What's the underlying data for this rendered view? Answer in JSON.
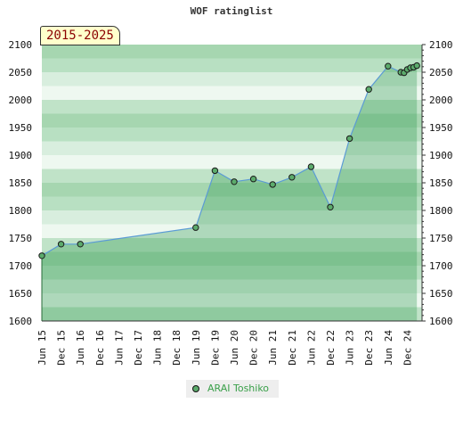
{
  "chart_data": {
    "type": "area",
    "title": "WOF ratinglist",
    "period_label": "2015-2025",
    "ylim": [
      1600,
      2100
    ],
    "yticks": [
      1600,
      1650,
      1700,
      1750,
      1800,
      1850,
      1900,
      1950,
      2000,
      2050,
      2100
    ],
    "x_ticks": [
      {
        "date": "2015-06",
        "label": "Jun 15"
      },
      {
        "date": "2015-12",
        "label": "Dec 15"
      },
      {
        "date": "2016-06",
        "label": "Jun 16"
      },
      {
        "date": "2016-12",
        "label": "Dec 16"
      },
      {
        "date": "2017-06",
        "label": "Jun 17"
      },
      {
        "date": "2017-12",
        "label": "Dec 17"
      },
      {
        "date": "2018-06",
        "label": "Jun 18"
      },
      {
        "date": "2018-12",
        "label": "Dec 18"
      },
      {
        "date": "2019-06",
        "label": "Jun 19"
      },
      {
        "date": "2019-12",
        "label": "Dec 19"
      },
      {
        "date": "2020-06",
        "label": "Jun 20"
      },
      {
        "date": "2020-12",
        "label": "Dec 20"
      },
      {
        "date": "2021-06",
        "label": "Jun 21"
      },
      {
        "date": "2021-12",
        "label": "Dec 21"
      },
      {
        "date": "2022-06",
        "label": "Jun 22"
      },
      {
        "date": "2022-12",
        "label": "Dec 22"
      },
      {
        "date": "2023-06",
        "label": "Jun 23"
      },
      {
        "date": "2023-12",
        "label": "Dec 23"
      },
      {
        "date": "2024-06",
        "label": "Jun 24"
      },
      {
        "date": "2024-12",
        "label": "Dec 24"
      }
    ],
    "series": [
      {
        "name": "ARAI Toshiko",
        "color": "#5cab6c",
        "points": [
          {
            "date": "2015-06",
            "value": 1718
          },
          {
            "date": "2015-12",
            "value": 1739
          },
          {
            "date": "2016-06",
            "value": 1739
          },
          {
            "date": "2019-06",
            "value": 1769
          },
          {
            "date": "2019-12",
            "value": 1872
          },
          {
            "date": "2020-06",
            "value": 1852
          },
          {
            "date": "2020-12",
            "value": 1857
          },
          {
            "date": "2021-06",
            "value": 1847
          },
          {
            "date": "2021-12",
            "value": 1860
          },
          {
            "date": "2022-06",
            "value": 1879
          },
          {
            "date": "2022-12",
            "value": 1806
          },
          {
            "date": "2023-06",
            "value": 1930
          },
          {
            "date": "2023-12",
            "value": 2019
          },
          {
            "date": "2024-06",
            "value": 2061
          },
          {
            "date": "2024-10",
            "value": 2050
          },
          {
            "date": "2024-11",
            "value": 2049
          },
          {
            "date": "2024-12",
            "value": 2055
          },
          {
            "date": "2025-01",
            "value": 2058
          },
          {
            "date": "2025-02",
            "value": 2059
          },
          {
            "date": "2025-03",
            "value": 2062
          }
        ]
      }
    ],
    "legend_position": "bottom"
  }
}
